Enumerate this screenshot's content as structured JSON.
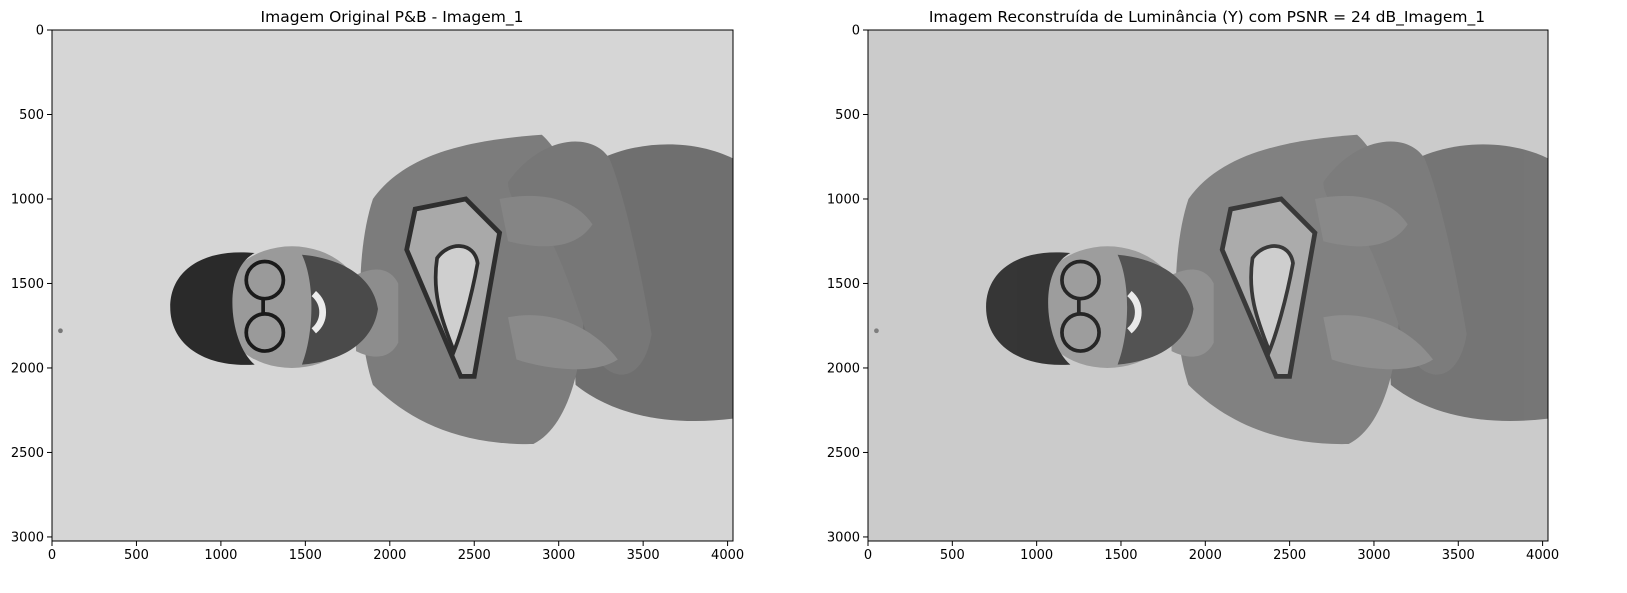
{
  "chart_data": [
    {
      "type": "image",
      "title": "Imagem Original P&B - Imagem_1",
      "xlim": [
        0,
        4032
      ],
      "ylim": [
        3024,
        0
      ],
      "x_ticks": [
        0,
        500,
        1000,
        1500,
        2000,
        2500,
        3000,
        3500,
        4000
      ],
      "y_ticks": [
        0,
        500,
        1000,
        1500,
        2000,
        2500,
        3000
      ],
      "colormap": "gray",
      "background_gray": "#d6d6d6",
      "content": "grayscale photo rotated 90°: bearded man with round glasses, arms crossed, wearing a Superman-logo t-shirt"
    },
    {
      "type": "image",
      "title": "Imagem Reconstruída de Luminância (Y) com PSNR = 24 dB_Imagem_1",
      "xlim": [
        0,
        4032
      ],
      "ylim": [
        3024,
        0
      ],
      "x_ticks": [
        0,
        500,
        1000,
        1500,
        2000,
        2500,
        3000,
        3500,
        4000
      ],
      "y_ticks": [
        0,
        500,
        1000,
        1500,
        2000,
        2500,
        3000
      ],
      "colormap": "gray",
      "background_gray": "#cbcbcb",
      "content": "reconstructed luminance of the same photo, slightly darker"
    }
  ]
}
